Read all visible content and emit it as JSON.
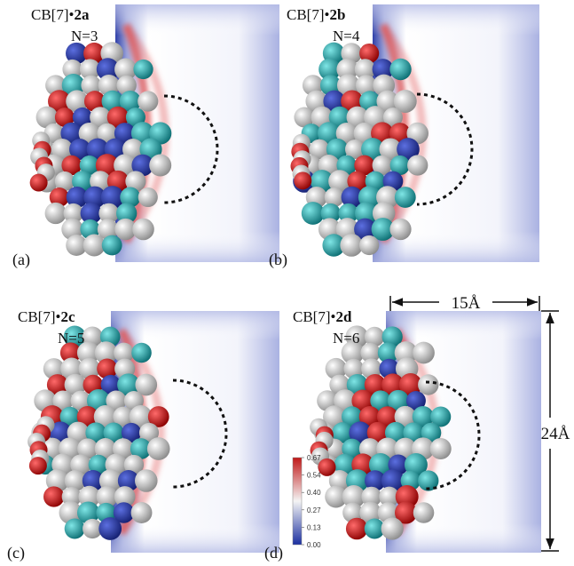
{
  "panels": [
    {
      "label": "(a)",
      "title": "CB[7]•",
      "compound": "2a",
      "n": "N=3"
    },
    {
      "label": "(b)",
      "title": "CB[7]•",
      "compound": "2b",
      "n": "N=4"
    },
    {
      "label": "(c)",
      "title": "CB[7]•",
      "compound": "2c",
      "n": "N=5"
    },
    {
      "label": "(d)",
      "title": "CB[7]•",
      "compound": "2d",
      "n": "N=6"
    }
  ],
  "colorbar": {
    "ticks": [
      "0.67",
      "0.54",
      "0.40",
      "0.27",
      "0.13",
      "0.00"
    ]
  },
  "dimensions": {
    "width": "15Å",
    "height": "24Å"
  }
}
